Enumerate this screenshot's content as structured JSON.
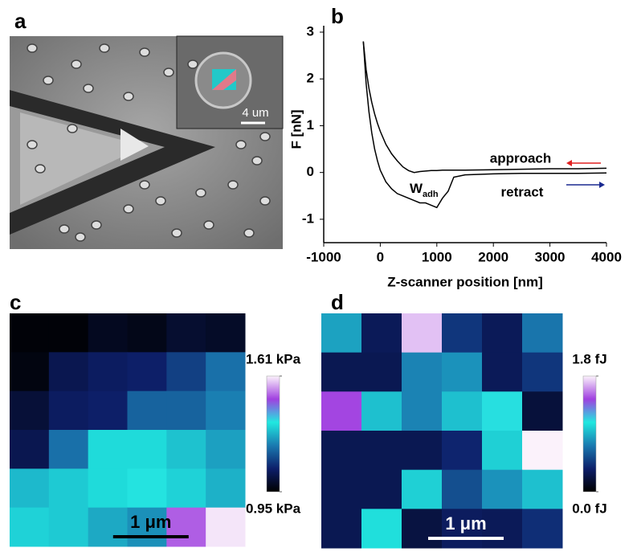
{
  "image_panel": {
    "label": "a",
    "scale_bar": "4 um"
  },
  "chart_data": [
    {
      "type": "line",
      "panel_label": "b",
      "x_label": "Z-scanner position [nm]",
      "y_label": "F [nN]",
      "x": [
        -300,
        -250,
        -200,
        -150,
        -100,
        -50,
        0,
        100,
        200,
        300,
        400,
        500,
        600,
        700,
        800,
        900,
        1000,
        1100,
        1200,
        1300,
        1500,
        2000,
        2500,
        3000,
        3500,
        4000
      ],
      "series": [
        {
          "name": "approach",
          "color": "#000000",
          "values": [
            2.8,
            2.2,
            1.8,
            1.5,
            1.25,
            1.05,
            0.88,
            0.6,
            0.4,
            0.25,
            0.12,
            0.04,
            0.0,
            0.02,
            0.03,
            0.04,
            0.04,
            0.05,
            0.05,
            0.05,
            0.05,
            0.06,
            0.07,
            0.08,
            0.08,
            0.09
          ]
        },
        {
          "name": "retract",
          "color": "#000000",
          "values": [
            2.8,
            1.9,
            1.3,
            0.85,
            0.5,
            0.25,
            0.05,
            -0.2,
            -0.35,
            -0.45,
            -0.5,
            -0.55,
            -0.6,
            -0.65,
            -0.65,
            -0.7,
            -0.75,
            -0.55,
            -0.4,
            -0.1,
            -0.05,
            -0.03,
            -0.02,
            -0.02,
            -0.02,
            -0.01
          ]
        }
      ],
      "annotations": [
        {
          "text": "approach",
          "arrow_color": "#e02020"
        },
        {
          "text": "retract",
          "arrow_color": "#1a2a90"
        },
        {
          "text": "W",
          "subscript": "adh"
        }
      ],
      "xlim": [
        -1000,
        4000
      ],
      "xticks": [
        -1000,
        0,
        1000,
        2000,
        3000,
        4000
      ],
      "ylim": [
        -1.5,
        3
      ],
      "yticks": [
        -1,
        0,
        1,
        2,
        3
      ]
    },
    {
      "type": "heatmap",
      "panel_label": "c",
      "scale_bar": "1 μm",
      "colormap": [
        "#000000",
        "#0d1f6a",
        "#1a7ab0",
        "#20e8e0",
        "#a040e0",
        "#fbf2fb"
      ],
      "zlim": [
        0.95,
        1.61
      ],
      "zticks": [
        {
          "value": 1.61,
          "label": "1.61 kPa"
        },
        {
          "value": 0.95,
          "label": "0.95 kPa"
        }
      ],
      "values": [
        [
          0.96,
          0.96,
          0.99,
          0.98,
          1.01,
          1.0
        ],
        [
          0.97,
          1.05,
          1.07,
          1.08,
          1.13,
          1.2
        ],
        [
          1.02,
          1.07,
          1.08,
          1.18,
          1.18,
          1.22
        ],
        [
          1.05,
          1.2,
          1.33,
          1.33,
          1.3,
          1.26
        ],
        [
          1.29,
          1.31,
          1.33,
          1.35,
          1.32,
          1.28
        ],
        [
          1.32,
          1.31,
          1.27,
          1.24,
          1.5,
          1.6
        ]
      ]
    },
    {
      "type": "heatmap",
      "panel_label": "d",
      "scale_bar": "1 μm",
      "colormap": [
        "#000000",
        "#0d1f6a",
        "#1a7ab0",
        "#20e8e0",
        "#a040e0",
        "#fbf2fb"
      ],
      "zlim": [
        0.0,
        1.8
      ],
      "zticks": [
        {
          "value": 1.8,
          "label": "1.8 fJ"
        },
        {
          "value": 0.0,
          "label": "0.0 fJ"
        }
      ],
      "values": [
        [
          0.85,
          0.3,
          1.7,
          0.45,
          0.3,
          0.7
        ],
        [
          0.28,
          0.28,
          0.75,
          0.8,
          0.3,
          0.45
        ],
        [
          1.45,
          0.95,
          0.75,
          0.95,
          1.1,
          0.2
        ],
        [
          0.28,
          0.28,
          0.28,
          0.38,
          1.0,
          1.8
        ],
        [
          0.28,
          0.28,
          1.0,
          0.55,
          0.8,
          0.95
        ],
        [
          0.28,
          1.05,
          0.22,
          0.32,
          0.3,
          0.42
        ]
      ]
    }
  ]
}
